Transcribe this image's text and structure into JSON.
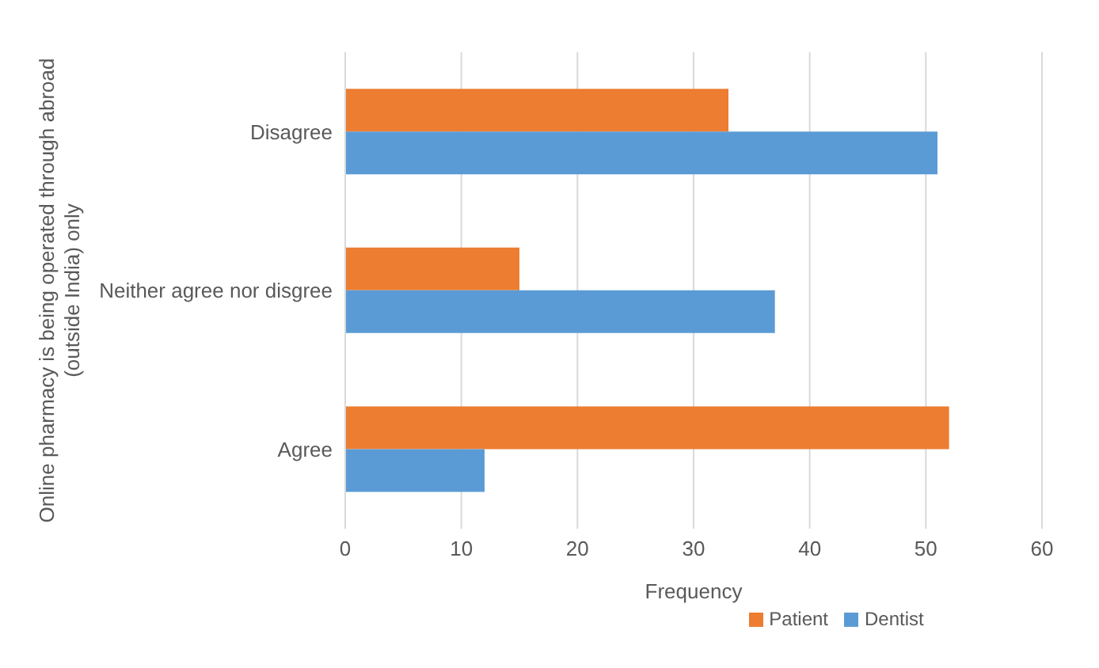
{
  "chart_data": {
    "type": "bar",
    "orientation": "horizontal",
    "categories": [
      "Disagree",
      "Neither agree nor disgree",
      "Agree"
    ],
    "series": [
      {
        "name": "Patient",
        "color": "#ed7d31",
        "values": [
          33,
          15,
          52
        ]
      },
      {
        "name": "Dentist",
        "color": "#5b9bd5",
        "values": [
          51,
          37,
          12
        ]
      }
    ],
    "xlabel": "Frequency",
    "ylabel": "Online pharmacy is being operated through abroad (outside India) only",
    "xlim": [
      0,
      60
    ],
    "xticks": [
      0,
      10,
      20,
      30,
      40,
      50,
      60
    ],
    "grid": "x",
    "legend": "bottom"
  }
}
